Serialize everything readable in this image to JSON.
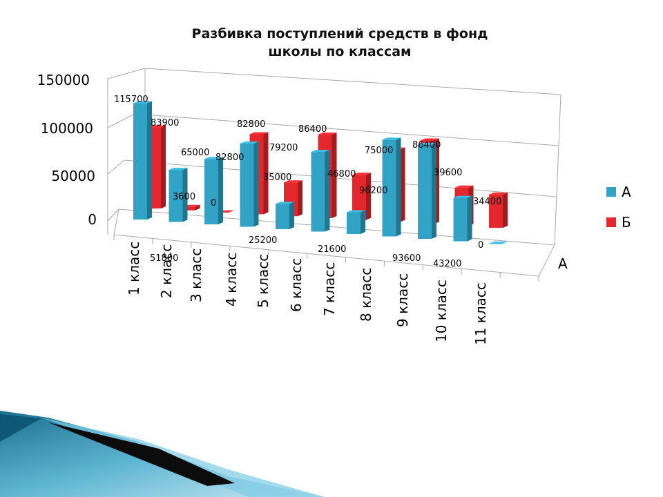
{
  "chart_data": {
    "type": "bar",
    "title_line1": "Разбивка поступлений средств в фонд",
    "title_line2": "школы по классам",
    "categories": [
      "1 класс",
      "2 класс",
      "3 класс",
      "4 класс",
      "5 класс",
      "6 класс",
      "7 класс",
      "8 класс",
      "9 класс",
      "10 класс",
      "11 класс"
    ],
    "series": [
      {
        "name": "А",
        "color": "#31a3c4",
        "values": [
          115700,
          51800,
          65000,
          82800,
          25200,
          79200,
          21600,
          96200,
          93600,
          43200,
          0
        ]
      },
      {
        "name": "Б",
        "color": "#e3272d",
        "values": [
          83900,
          3600,
          0,
          82800,
          35000,
          86400,
          46800,
          75000,
          86400,
          39600,
          34400
        ]
      }
    ],
    "yticks": [
      "150000",
      "100000",
      "50000",
      "0"
    ],
    "ylim": [
      0,
      150000
    ],
    "depth_axis_label": "А",
    "legend_position": "right",
    "grid": true
  }
}
